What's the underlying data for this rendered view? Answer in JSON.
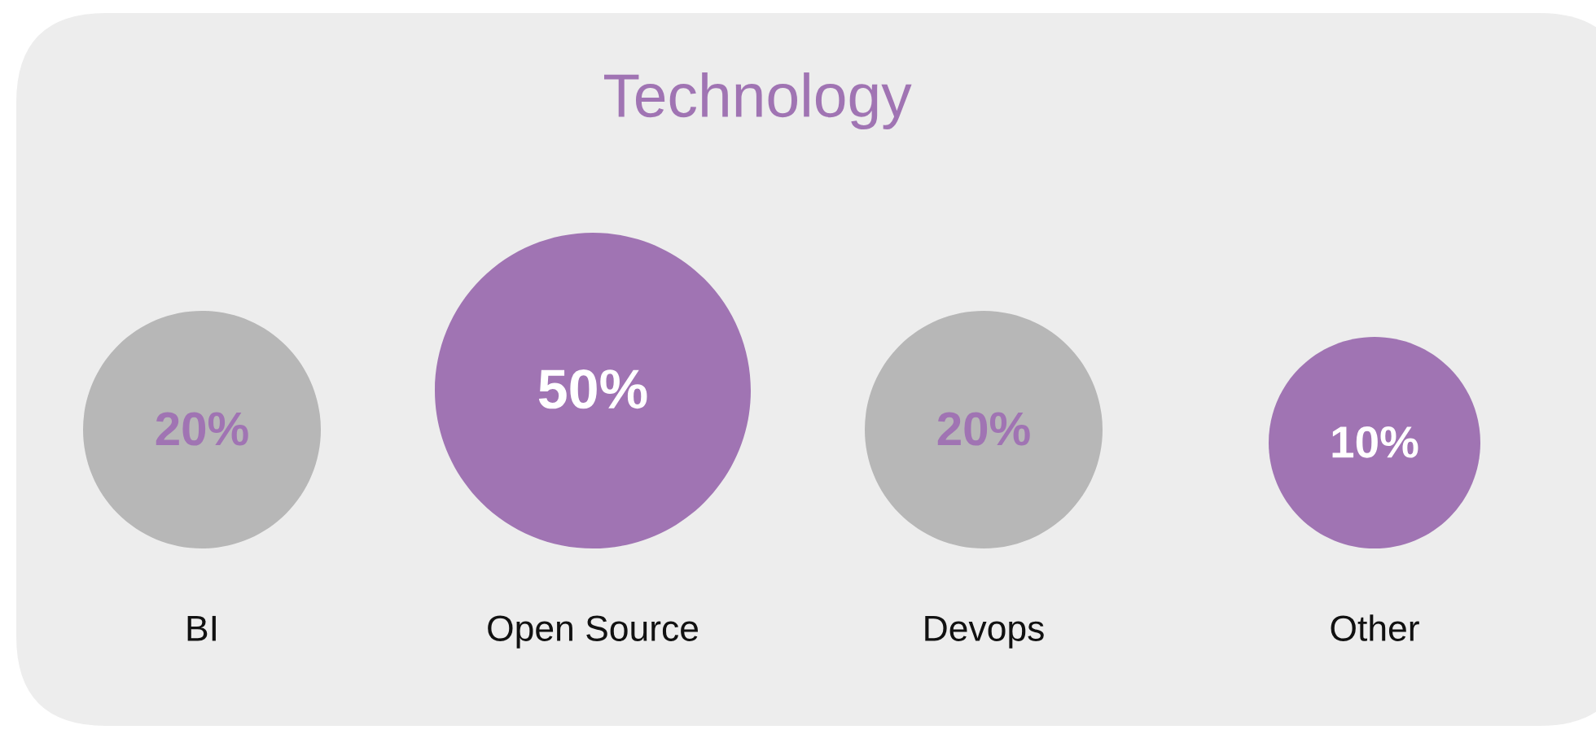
{
  "chart_data": {
    "type": "other",
    "title": "Technology",
    "categories": [
      "BI",
      "Open Source",
      "Devops",
      "Other"
    ],
    "values": [
      20,
      50,
      20,
      10
    ],
    "colors": [
      "#b7b7b7",
      "#a074b3",
      "#b7b7b7",
      "#a074b3"
    ],
    "value_labels": [
      "20%",
      "50%",
      "20%",
      "10%"
    ]
  }
}
